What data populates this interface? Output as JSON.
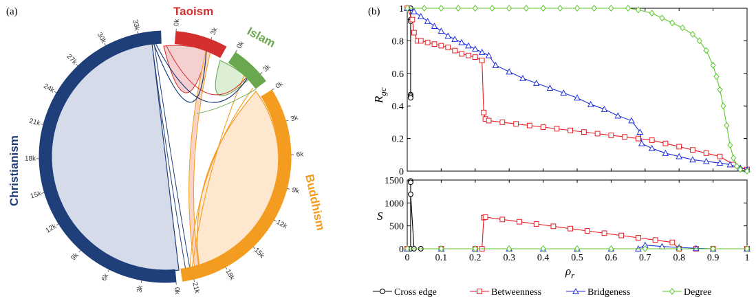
{
  "panels": {
    "a": "(a)",
    "b": "(b)"
  },
  "chart_data": [
    {
      "type": "chord",
      "groups": [
        {
          "name": "Christianism",
          "color": "#1f3f7a",
          "max": 35,
          "ticks": [
            "0k",
            "3k",
            "6k",
            "9k",
            "12k",
            "15k",
            "18k",
            "21k",
            "24k",
            "27k",
            "30k",
            "33k"
          ]
        },
        {
          "name": "Taoism",
          "color": "#d32f2f",
          "max": 4.4,
          "ticks": [
            "0k",
            "3k"
          ]
        },
        {
          "name": "Islam",
          "color": "#6aa84f",
          "max": 3.8,
          "ticks": [
            "0k",
            "3k"
          ]
        },
        {
          "name": "Buddhism",
          "color": "#f39c1f",
          "max": 22,
          "ticks": [
            "0k",
            "3k",
            "6k",
            "9k",
            "12k",
            "15k",
            "18k",
            "21k"
          ]
        }
      ]
    },
    {
      "type": "line",
      "ylabel": "R",
      "ylabel_sub": "gc",
      "xlim": [
        0,
        1
      ],
      "ylim": [
        0,
        1
      ],
      "yticks": [
        "0",
        "0.2",
        "0.4",
        "0.6",
        "0.8",
        "1"
      ],
      "series": [
        {
          "name": "Cross edge",
          "color": "#000000",
          "marker": "circle",
          "x": [
            0.01,
            0.01,
            0.01,
            0.01,
            0.01,
            0.01
          ],
          "y": [
            1.0,
            0.93,
            0.92,
            0.47,
            0.46,
            0.45
          ]
        },
        {
          "name": "Betweenness",
          "color": "#e8191f",
          "marker": "square",
          "x": [
            0,
            0.015,
            0.02,
            0.03,
            0.04,
            0.06,
            0.08,
            0.1,
            0.12,
            0.14,
            0.16,
            0.18,
            0.2,
            0.22,
            0.225,
            0.23,
            0.24,
            0.28,
            0.32,
            0.36,
            0.4,
            0.44,
            0.48,
            0.52,
            0.56,
            0.6,
            0.64,
            0.68,
            0.72,
            0.76,
            0.8,
            0.84,
            0.88,
            0.92,
            0.96,
            1.0
          ],
          "y": [
            1.0,
            0.93,
            0.85,
            0.8,
            0.8,
            0.79,
            0.78,
            0.77,
            0.76,
            0.74,
            0.72,
            0.71,
            0.7,
            0.68,
            0.36,
            0.32,
            0.31,
            0.3,
            0.29,
            0.28,
            0.27,
            0.26,
            0.25,
            0.24,
            0.23,
            0.22,
            0.21,
            0.2,
            0.19,
            0.17,
            0.15,
            0.13,
            0.11,
            0.09,
            0.04,
            0.01
          ]
        },
        {
          "name": "Bridgeness",
          "color": "#1f2ee0",
          "marker": "triangle",
          "x": [
            0,
            0.02,
            0.04,
            0.06,
            0.08,
            0.1,
            0.12,
            0.14,
            0.16,
            0.18,
            0.2,
            0.22,
            0.24,
            0.26,
            0.3,
            0.34,
            0.38,
            0.42,
            0.46,
            0.5,
            0.54,
            0.58,
            0.62,
            0.66,
            0.685,
            0.69,
            0.72,
            0.76,
            0.8,
            0.84,
            0.88,
            0.92,
            0.95,
            0.98,
            1.0
          ],
          "y": [
            1.0,
            0.98,
            0.95,
            0.92,
            0.89,
            0.86,
            0.83,
            0.81,
            0.79,
            0.77,
            0.75,
            0.73,
            0.71,
            0.65,
            0.61,
            0.57,
            0.54,
            0.51,
            0.48,
            0.45,
            0.41,
            0.38,
            0.34,
            0.31,
            0.24,
            0.17,
            0.14,
            0.11,
            0.09,
            0.07,
            0.06,
            0.05,
            0.04,
            0.02,
            0.01
          ]
        },
        {
          "name": "Degree",
          "color": "#5ac82a",
          "marker": "diamond",
          "x": [
            0,
            0.05,
            0.1,
            0.15,
            0.2,
            0.25,
            0.3,
            0.35,
            0.4,
            0.45,
            0.5,
            0.55,
            0.6,
            0.65,
            0.68,
            0.72,
            0.75,
            0.78,
            0.81,
            0.84,
            0.86,
            0.88,
            0.9,
            0.91,
            0.92,
            0.93,
            0.94,
            0.95,
            0.96,
            0.97,
            0.98,
            1.0
          ],
          "y": [
            1.0,
            1.0,
            1.0,
            1.0,
            1.0,
            1.0,
            1.0,
            1.0,
            1.0,
            1.0,
            1.0,
            1.0,
            1.0,
            1.0,
            0.99,
            0.97,
            0.94,
            0.91,
            0.88,
            0.84,
            0.8,
            0.74,
            0.65,
            0.58,
            0.5,
            0.4,
            0.28,
            0.16,
            0.08,
            0.03,
            0.01,
            0.0
          ]
        }
      ]
    },
    {
      "type": "line",
      "ylabel": "S",
      "xlabel": "ρ",
      "xlabel_sub": "r",
      "xlim": [
        0,
        1
      ],
      "ylim": [
        0,
        1500
      ],
      "xticks": [
        "0",
        "0.1",
        "0.2",
        "0.3",
        "0.4",
        "0.5",
        "0.6",
        "0.7",
        "0.8",
        "0.9",
        "1"
      ],
      "yticks": [
        "0",
        "500",
        "1000",
        "1500"
      ],
      "series": [
        {
          "name": "Cross edge",
          "color": "#000000",
          "marker": "circle",
          "x": [
            0.01,
            0.01,
            0.01,
            0.01,
            0.02,
            0.04
          ],
          "y": [
            0,
            1480,
            1450,
            1190,
            0,
            0
          ]
        },
        {
          "name": "Betweenness",
          "color": "#e8191f",
          "marker": "square",
          "x": [
            0.0,
            0.1,
            0.2,
            0.22,
            0.225,
            0.23,
            0.28,
            0.33,
            0.38,
            0.43,
            0.48,
            0.53,
            0.58,
            0.63,
            0.68,
            0.73,
            0.78,
            0.8,
            0.85,
            0.9,
            1.0
          ],
          "y": [
            0,
            0,
            0,
            0,
            680,
            690,
            640,
            590,
            540,
            490,
            440,
            390,
            340,
            290,
            240,
            190,
            140,
            0,
            0,
            0,
            0
          ]
        },
        {
          "name": "Bridgeness",
          "color": "#1f2ee0",
          "marker": "triangle",
          "x": [
            0.0,
            0.1,
            0.2,
            0.3,
            0.4,
            0.5,
            0.6,
            0.68,
            0.7,
            0.75,
            0.8,
            0.85,
            0.9,
            1.0
          ],
          "y": [
            0,
            0,
            0,
            0,
            0,
            0,
            0,
            0,
            80,
            50,
            30,
            10,
            0,
            0
          ]
        },
        {
          "name": "Degree",
          "color": "#5ac82a",
          "marker": "diamond",
          "x": [
            0.0,
            0.1,
            0.2,
            0.3,
            0.4,
            0.5,
            0.6,
            0.7,
            0.8,
            0.9,
            1.0
          ],
          "y": [
            0,
            0,
            0,
            0,
            0,
            0,
            0,
            0,
            0,
            0,
            0
          ]
        }
      ]
    }
  ]
}
